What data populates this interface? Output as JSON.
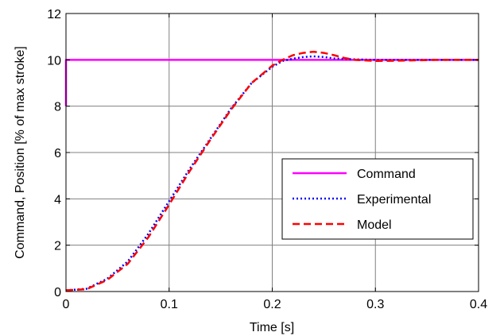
{
  "chart_data": {
    "type": "line",
    "title": "",
    "xlabel": "Time [s]",
    "ylabel": "Command, Position [% of max stroke]",
    "xlim": [
      0,
      0.4
    ],
    "ylim": [
      0,
      12
    ],
    "x_ticks": [
      0,
      0.1,
      0.2,
      0.3,
      0.4
    ],
    "x_tick_labels": [
      "0",
      "0.1",
      "0.2",
      "0.3",
      "0.4"
    ],
    "y_ticks": [
      0,
      2,
      4,
      6,
      8,
      10,
      12
    ],
    "y_tick_labels": [
      "0",
      "2",
      "4",
      "6",
      "8",
      "10",
      "12"
    ],
    "grid": true,
    "legend_position": "right",
    "series": [
      {
        "name": "Command",
        "color": "#ff00ff",
        "style": "solid",
        "x": [
          0,
          0,
          0.002,
          0.4
        ],
        "y": [
          8,
          10,
          10,
          10
        ]
      },
      {
        "name": "Experimental",
        "color": "#0000ff",
        "style": "dotted",
        "x": [
          0,
          0.02,
          0.04,
          0.06,
          0.08,
          0.1,
          0.12,
          0.14,
          0.16,
          0.18,
          0.2,
          0.21,
          0.22,
          0.23,
          0.24,
          0.25,
          0.26,
          0.28,
          0.3,
          0.33,
          0.36,
          0.4
        ],
        "y": [
          0.05,
          0.12,
          0.55,
          1.3,
          2.5,
          3.9,
          5.3,
          6.6,
          7.9,
          9.0,
          9.7,
          9.95,
          10.05,
          10.12,
          10.15,
          10.12,
          10.06,
          10.02,
          10.0,
          10.0,
          10.0,
          10.0
        ]
      },
      {
        "name": "Model",
        "color": "#ff0000",
        "style": "dashed",
        "x": [
          0,
          0.02,
          0.04,
          0.06,
          0.08,
          0.1,
          0.12,
          0.14,
          0.16,
          0.18,
          0.2,
          0.21,
          0.22,
          0.23,
          0.24,
          0.25,
          0.26,
          0.27,
          0.28,
          0.3,
          0.33,
          0.36,
          0.4
        ],
        "y": [
          0.05,
          0.1,
          0.5,
          1.2,
          2.35,
          3.75,
          5.2,
          6.55,
          7.85,
          9.0,
          9.75,
          10.0,
          10.2,
          10.3,
          10.35,
          10.3,
          10.2,
          10.08,
          10.0,
          9.95,
          9.97,
          10.0,
          10.0
        ]
      }
    ]
  }
}
